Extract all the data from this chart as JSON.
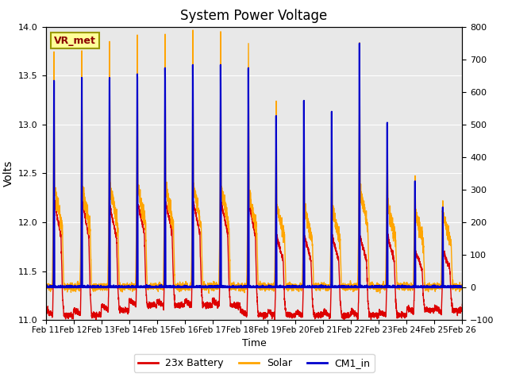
{
  "title": "System Power Voltage",
  "xlabel": "Time",
  "ylabel": "Volts",
  "xlim_end": 15,
  "ylim_left": [
    11.0,
    14.0
  ],
  "ylim_right": [
    -100,
    800
  ],
  "xtick_labels": [
    "Feb 11",
    "Feb 12",
    "Feb 13",
    "Feb 14",
    "Feb 15",
    "Feb 16",
    "Feb 17",
    "Feb 18",
    "Feb 19",
    "Feb 20",
    "Feb 21",
    "Feb 22",
    "Feb 23",
    "Feb 24",
    "Feb 25",
    "Feb 26"
  ],
  "ytick_left": [
    11.0,
    11.5,
    12.0,
    12.5,
    13.0,
    13.5,
    14.0
  ],
  "ytick_right": [
    -100,
    0,
    100,
    200,
    300,
    400,
    500,
    600,
    700,
    800
  ],
  "bg_color": "#e8e8e8",
  "fig_color": "#ffffff",
  "grid_color": "#ffffff",
  "line_colors": {
    "battery": "#dd0000",
    "solar": "#ffa500",
    "cm1": "#0000cc"
  },
  "line_widths": {
    "battery": 1.0,
    "solar": 1.0,
    "cm1": 1.5
  },
  "legend_labels": [
    "23x Battery",
    "Solar",
    "CM1_in"
  ],
  "annotation_text": "VR_met",
  "annotation_color": "#8b0000",
  "annotation_bg": "#ffff99",
  "annotation_border": "#999900"
}
